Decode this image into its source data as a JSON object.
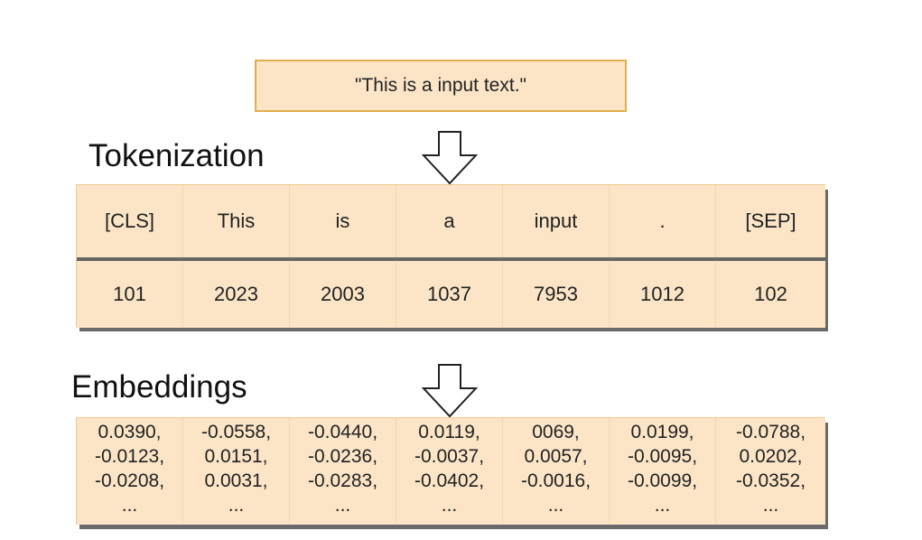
{
  "input_text": "\"This is a input text.\"",
  "tokenization_title": "Tokenization",
  "embeddings_title": "Embeddings",
  "tokens": [
    "[CLS]",
    "This",
    "is",
    "a",
    "input",
    ".",
    "[SEP]"
  ],
  "token_ids": [
    "101",
    "2023",
    "2003",
    "1037",
    "7953",
    "1012",
    "102"
  ],
  "embeddings": [
    [
      "0.0390,",
      "-0.0123,",
      "-0.0208,",
      "..."
    ],
    [
      "-0.0558,",
      "0.0151,",
      "0.0031,",
      "..."
    ],
    [
      "-0.0440,",
      "-0.0236,",
      "-0.0283,",
      "..."
    ],
    [
      "0.0119,",
      "-0.0037,",
      "-0.0402,",
      "..."
    ],
    [
      "0069,",
      "0.0057,",
      "-0.0016,",
      "..."
    ],
    [
      "0.0199,",
      "-0.0095,",
      "-0.0099,",
      "..."
    ],
    [
      "-0.0788,",
      "0.0202,",
      "-0.0352,",
      "..."
    ]
  ],
  "colors": {
    "box_fill": "#fbe5c6",
    "box_border": "#e0b050",
    "shadow": "#6a6a6a"
  }
}
